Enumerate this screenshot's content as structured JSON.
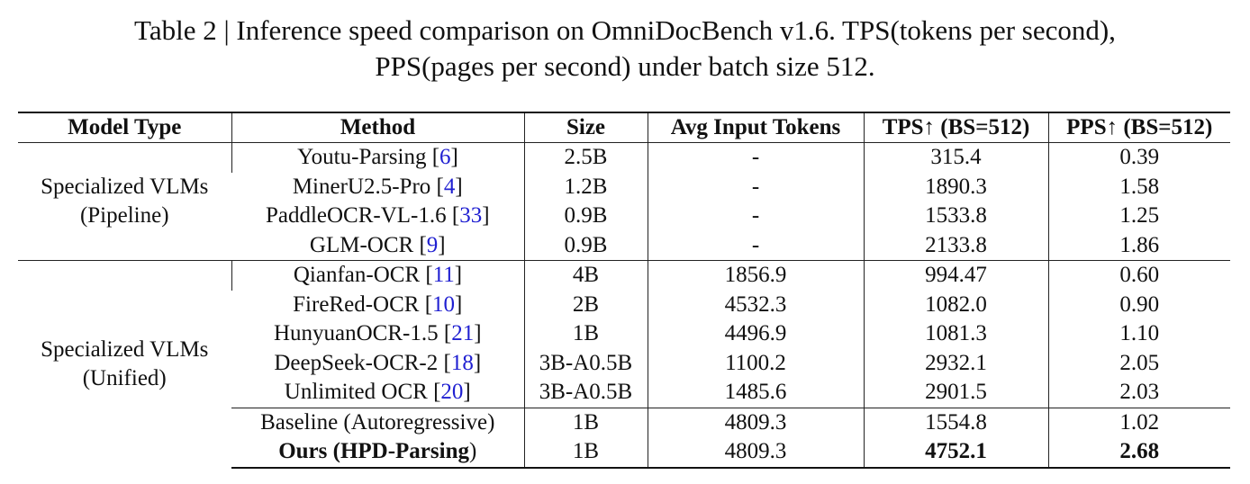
{
  "caption": {
    "line1": "Table 2 | Inference speed comparison on OmniDocBench v1.6. TPS(tokens per second),",
    "line2": "PPS(pages per second) under batch size 512."
  },
  "headers": {
    "model_type": "Model Type",
    "method": "Method",
    "size": "Size",
    "avg_input_tokens": "Avg Input Tokens",
    "tps": "TPS↑ (BS=512)",
    "pps": "PPS↑ (BS=512)"
  },
  "groups": [
    {
      "line1": "Specialized VLMs",
      "line2": "(Pipeline)"
    },
    {
      "line1": "Specialized VLMs",
      "line2": "(Unified)"
    }
  ],
  "rows": [
    {
      "method": "Youtu-Parsing",
      "ref": "6",
      "size": "2.5B",
      "tokens": "-",
      "tps": "315.4",
      "pps": "0.39"
    },
    {
      "method": "MinerU2.5-Pro",
      "ref": "4",
      "size": "1.2B",
      "tokens": "-",
      "tps": "1890.3",
      "pps": "1.58"
    },
    {
      "method": "PaddleOCR-VL-1.6",
      "ref": "33",
      "size": "0.9B",
      "tokens": "-",
      "tps": "1533.8",
      "pps": "1.25"
    },
    {
      "method": "GLM-OCR",
      "ref": "9",
      "size": "0.9B",
      "tokens": "-",
      "tps": "2133.8",
      "pps": "1.86"
    },
    {
      "method": "Qianfan-OCR",
      "ref": "11",
      "size": "4B",
      "tokens": "1856.9",
      "tps": "994.47",
      "pps": "0.60"
    },
    {
      "method": "FireRed-OCR",
      "ref": "10",
      "size": "2B",
      "tokens": "4532.3",
      "tps": "1082.0",
      "pps": "0.90"
    },
    {
      "method": "HunyuanOCR-1.5",
      "ref": "21",
      "size": "1B",
      "tokens": "4496.9",
      "tps": "1081.3",
      "pps": "1.10"
    },
    {
      "method": "DeepSeek-OCR-2",
      "ref": "18",
      "size": "3B-A0.5B",
      "tokens": "1100.2",
      "tps": "2932.1",
      "pps": "2.05"
    },
    {
      "method": "Unlimited OCR",
      "ref": "20",
      "size": "3B-A0.5B",
      "tokens": "1485.6",
      "tps": "2901.5",
      "pps": "2.03"
    },
    {
      "method": "Baseline (Autoregressive)",
      "ref": "",
      "size": "1B",
      "tokens": "4809.3",
      "tps": "1554.8",
      "pps": "1.02"
    },
    {
      "method": "Ours (HPD-Parsing",
      "method_suffix": ")",
      "ref": "",
      "size": "1B",
      "tokens": "4809.3",
      "tps": "4752.1",
      "pps": "2.68"
    }
  ]
}
